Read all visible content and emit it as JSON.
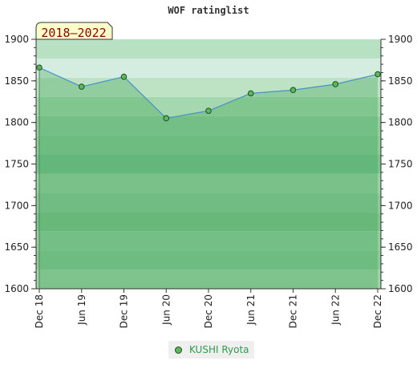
{
  "chart_data": {
    "type": "line",
    "title": "WOF ratinglist",
    "period_label": "2018–2022",
    "categories": [
      "Dec 18",
      "Jun 19",
      "Dec 19",
      "Jun 20",
      "Dec 20",
      "Jun 21",
      "Dec 21",
      "Jun 22",
      "Dec 22"
    ],
    "series": [
      {
        "name": "KUSHI Ryota",
        "values": [
          1866,
          1843,
          1855,
          1805,
          1814,
          1835,
          1839,
          1846,
          1858
        ]
      }
    ],
    "ylim": [
      1600,
      1900
    ],
    "yticks": [
      1600,
      1650,
      1700,
      1750,
      1800,
      1850,
      1900
    ],
    "yticks_labels": [
      "1600",
      "1650",
      "1700",
      "1750",
      "1800",
      "1850",
      "1900"
    ],
    "dual_y_axis": true,
    "grid": false,
    "legend_position": "bottom-center",
    "colors": {
      "line": "#4a90c8",
      "marker_fill": "#5cb85c",
      "marker_stroke": "#1e4d1e",
      "area_fill": "#2e9c4a",
      "legend_text": "#2e9c4a",
      "period_text": "#8b0000",
      "period_bg": "#ffffcc"
    }
  }
}
